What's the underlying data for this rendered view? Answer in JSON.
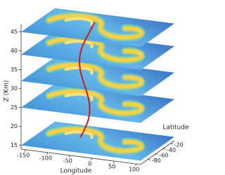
{
  "chart_data": {
    "type": "slices3d",
    "xlabel": "Longitude",
    "ylabel": "Latitude",
    "zlabel": "Z (Km)",
    "xlim": [
      -160,
      110
    ],
    "xticks": [
      -150,
      -100,
      -50,
      0,
      50,
      100
    ],
    "ylim": [
      -100,
      -10
    ],
    "yticks": [
      -80,
      -60,
      -40,
      -20
    ],
    "zlim": [
      14,
      47
    ],
    "zticks": [
      15,
      20,
      25,
      30,
      35,
      40,
      45
    ],
    "slice_levels": [
      15,
      25,
      32,
      39,
      45
    ]
  }
}
